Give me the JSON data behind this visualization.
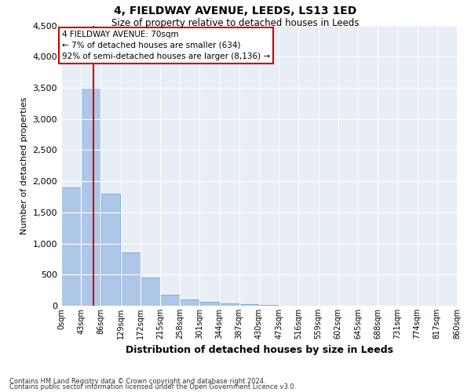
{
  "title": "4, FIELDWAY AVENUE, LEEDS, LS13 1ED",
  "subtitle": "Size of property relative to detached houses in Leeds",
  "xlabel": "Distribution of detached houses by size in Leeds",
  "ylabel": "Number of detached properties",
  "annotation_line1": "4 FIELDWAY AVENUE: 70sqm",
  "annotation_line2": "← 7% of detached houses are smaller (634)",
  "annotation_line3": "92% of semi-detached houses are larger (8,136) →",
  "property_size": 70,
  "bin_edges": [
    0,
    43,
    86,
    129,
    172,
    215,
    258,
    301,
    344,
    387,
    430,
    473,
    516,
    559,
    602,
    645,
    688,
    731,
    774,
    817,
    860
  ],
  "bar_heights": [
    1900,
    3500,
    1800,
    850,
    450,
    175,
    100,
    60,
    40,
    25,
    15,
    0,
    0,
    0,
    0,
    0,
    0,
    0,
    0,
    0
  ],
  "bar_color": "#aec6e8",
  "bar_edge_color": "#5b9bd5",
  "red_line_color": "#cc0000",
  "annotation_box_edge": "#cc0000",
  "background_color": "#e8eef5",
  "grid_color": "#ffffff",
  "ylim": [
    0,
    4500
  ],
  "yticks": [
    0,
    500,
    1000,
    1500,
    2000,
    2500,
    3000,
    3500,
    4000,
    4500
  ],
  "footer1": "Contains HM Land Registry data © Crown copyright and database right 2024.",
  "footer2": "Contains public sector information licensed under the Open Government Licence v3.0."
}
